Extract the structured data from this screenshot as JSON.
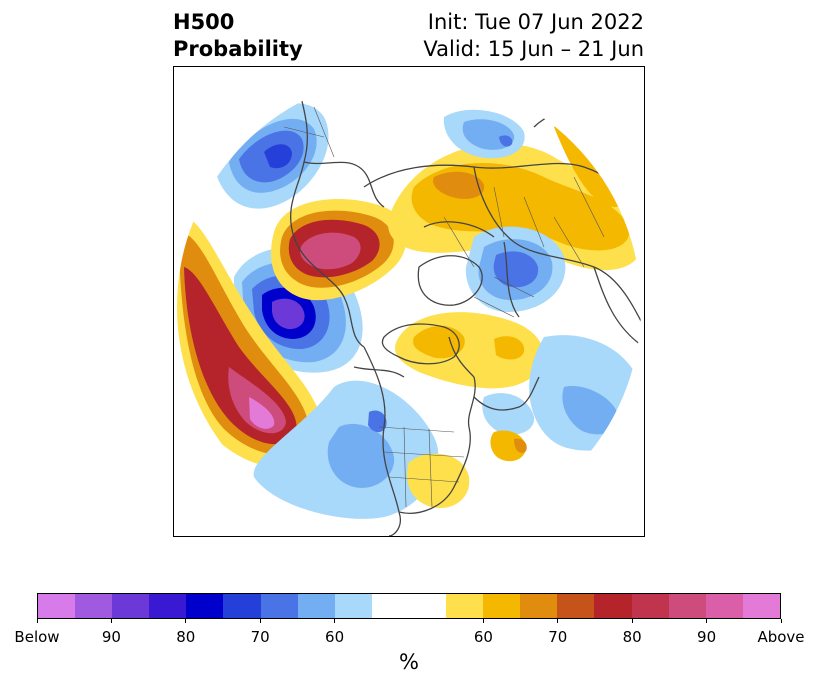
{
  "title": {
    "left_line1": "H500",
    "left_line2": "Probability",
    "right_line1": "Init: Tue 07 Jun 2022",
    "right_line2": "Valid: 15 Jun – 21 Jun"
  },
  "colorbar": {
    "unit": "%",
    "below_colors": [
      "#d77bea",
      "#a05ae0",
      "#6c39d8",
      "#3a19d3",
      "#0000cd",
      "#2540d9",
      "#4a74e6",
      "#74aef2",
      "#a8d8fa"
    ],
    "neutral_color": "#ffffff",
    "above_colors": [
      "#fde04c",
      "#f5b800",
      "#e08d0f",
      "#c6531a",
      "#b4242a",
      "#c1344e",
      "#cd4c7b",
      "#db5ea8",
      "#e47ad8"
    ],
    "tick_labels": [
      "Below",
      "90",
      "80",
      "70",
      "60",
      "60",
      "70",
      "80",
      "90",
      "Above"
    ]
  },
  "map": {
    "projection": "north-polar-stereographic",
    "land_outline_color": "#444444",
    "anomaly_regions": [
      {
        "name": "north-pacific-below",
        "category": "below",
        "peak_percent": 80
      },
      {
        "name": "nw-pacific-above",
        "category": "above",
        "peak_percent": 90
      },
      {
        "name": "alaska-chukchi-below",
        "category": "below",
        "peak_percent": 80
      },
      {
        "name": "east-siberia-above",
        "category": "above",
        "peak_percent": 90
      },
      {
        "name": "central-asia-above",
        "category": "above",
        "peak_percent": 70
      },
      {
        "name": "europe-below",
        "category": "below",
        "peak_percent": 70
      },
      {
        "name": "greenland-above",
        "category": "above",
        "peak_percent": 70
      },
      {
        "name": "western-us-below",
        "category": "below",
        "peak_percent": 60
      },
      {
        "name": "eastern-us-above",
        "category": "above",
        "peak_percent": 60
      }
    ]
  }
}
